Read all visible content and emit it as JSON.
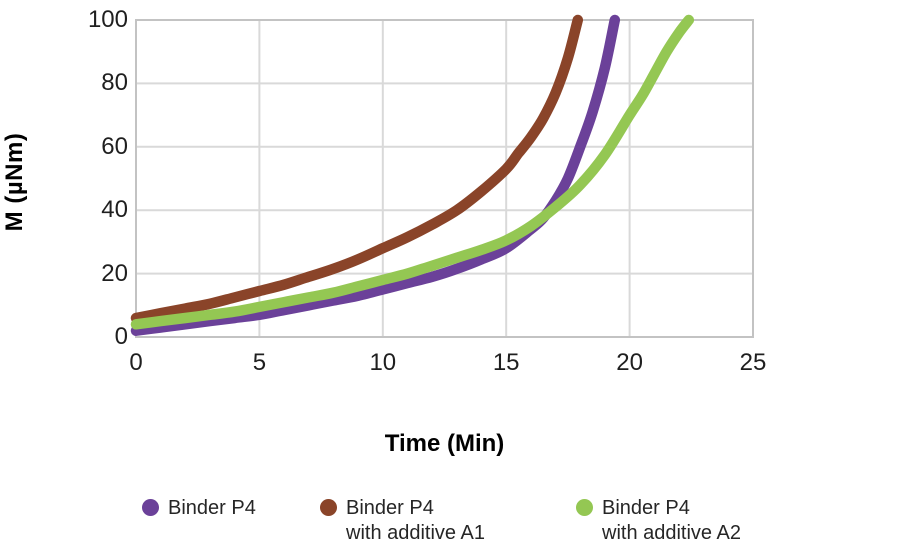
{
  "chart_data": {
    "type": "line",
    "title": "",
    "xlabel": "Time (Min)",
    "ylabel": "M (µNm)",
    "xlim": [
      0,
      25
    ],
    "ylim": [
      0,
      100
    ],
    "x_ticks": [
      0,
      5,
      10,
      15,
      20,
      25
    ],
    "y_ticks": [
      0,
      20,
      40,
      60,
      80,
      100
    ],
    "grid": true,
    "legend_position": "bottom",
    "line_width": 10.5,
    "series": [
      {
        "name": "Binder P4",
        "color": "#6b4199",
        "x": [
          0,
          1,
          2,
          3,
          4,
          5,
          6,
          7,
          8,
          9,
          10,
          11,
          12,
          13,
          14,
          15,
          16,
          16.5,
          17,
          17.5,
          18,
          18.5,
          19,
          19.4
        ],
        "y": [
          2,
          3,
          4,
          5,
          6,
          7,
          8.5,
          10,
          11.5,
          13,
          15,
          17,
          19,
          21.5,
          24.5,
          28,
          34,
          37.5,
          43,
          50,
          60,
          71,
          85,
          100
        ]
      },
      {
        "name": "Binder P4 with additive A1",
        "color": "#8a4429",
        "x": [
          0,
          1,
          2,
          3,
          4,
          5,
          6,
          7,
          8,
          9,
          10,
          11,
          12,
          13,
          14,
          15,
          15.5,
          16,
          16.5,
          17,
          17.5,
          17.9
        ],
        "y": [
          6,
          7.5,
          9,
          10.5,
          12.5,
          14.5,
          16.5,
          19,
          21.5,
          24.5,
          28,
          31.5,
          35.5,
          40,
          46,
          53,
          58,
          63,
          69,
          77,
          88,
          100
        ]
      },
      {
        "name": "Binder P4 with additive A2",
        "color": "#94c753",
        "x": [
          0,
          1,
          2,
          3,
          4,
          5,
          6,
          7,
          8,
          9,
          10,
          11,
          12,
          13,
          14,
          15,
          16,
          17,
          18,
          19,
          20,
          20.5,
          21,
          21.5,
          22,
          22.4
        ],
        "y": [
          4,
          5,
          6,
          7,
          8,
          9.5,
          11,
          12.5,
          14,
          16,
          18,
          20,
          22.5,
          25,
          27.5,
          30.5,
          35,
          41,
          48,
          57.5,
          70,
          76,
          83,
          90,
          96,
          100
        ]
      }
    ]
  },
  "legend": {
    "items": [
      {
        "line1": "Binder P4",
        "line2": "",
        "color": "#6b4199"
      },
      {
        "line1": "Binder P4",
        "line2": "with additive A1",
        "color": "#8a4429"
      },
      {
        "line1": "Binder P4",
        "line2": "with additive A2",
        "color": "#94c753"
      }
    ]
  },
  "colors": {
    "grid": "#d9d9d9",
    "border": "#c3c3c3",
    "tick_text": "#1f1f1f",
    "axis_title_text": "#000000",
    "background": "#ffffff"
  }
}
